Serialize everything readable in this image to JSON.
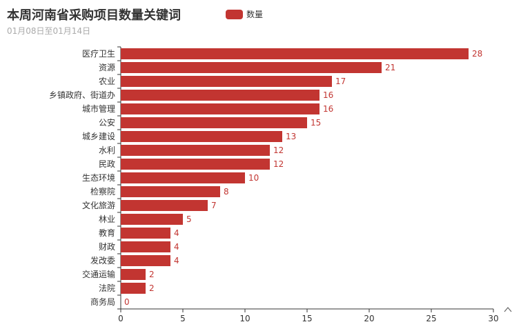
{
  "title": "本周河南省采购项目数量关键词",
  "subtitle": "01月08日至01月14日",
  "legend": {
    "label": "数量",
    "color": "#c23531"
  },
  "chart_data": {
    "type": "bar",
    "orientation": "horizontal",
    "categories": [
      "医疗卫生",
      "资源",
      "农业",
      "乡镇政府、街道办",
      "城市管理",
      "公安",
      "城乡建设",
      "水利",
      "民政",
      "生态环境",
      "检察院",
      "文化旅游",
      "林业",
      "教育",
      "财政",
      "发改委",
      "交通运输",
      "法院",
      "商务局"
    ],
    "series": [
      {
        "name": "数量",
        "values": [
          28,
          21,
          17,
          16,
          16,
          15,
          13,
          12,
          12,
          10,
          8,
          7,
          5,
          4,
          4,
          4,
          2,
          2,
          0
        ]
      }
    ],
    "xlim": [
      0,
      30
    ],
    "xticks": [
      0,
      5,
      10,
      15,
      20,
      25,
      30
    ],
    "bar_color": "#c23531",
    "grid": false,
    "legend_position": "top"
  },
  "axis_arrow_glyph": "^"
}
